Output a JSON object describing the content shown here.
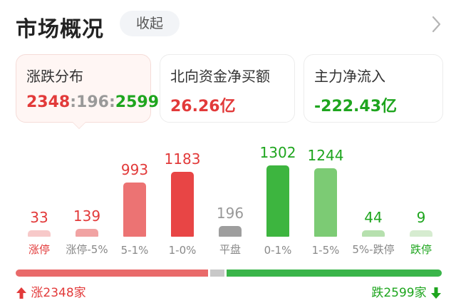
{
  "header": {
    "title": "市场概况",
    "collapse_label": "收起",
    "chevron_icon": "chevron-right-icon"
  },
  "cards": [
    {
      "label": "涨跌分布",
      "up": "2348",
      "sep1": ":",
      "flat": "196",
      "sep2": ":",
      "down": "2599"
    },
    {
      "label": "北向资金净买额",
      "value": "26.26亿"
    },
    {
      "label": "主力净流入",
      "value": "-222.43亿"
    }
  ],
  "distribution": [
    {
      "label": "涨停",
      "value": 33,
      "display": "33"
    },
    {
      "label": "涨停-5%",
      "value": 139,
      "display": "139"
    },
    {
      "label": "5-1%",
      "value": 993,
      "display": "993"
    },
    {
      "label": "1-0%",
      "value": 1183,
      "display": "1183"
    },
    {
      "label": "平盘",
      "value": 196,
      "display": "196"
    },
    {
      "label": "0-1%",
      "value": 1302,
      "display": "1302"
    },
    {
      "label": "1-5%",
      "value": 1244,
      "display": "1244"
    },
    {
      "label": "5%-跌停",
      "value": 44,
      "display": "44"
    },
    {
      "label": "跌停",
      "value": 9,
      "display": "9"
    }
  ],
  "footer": {
    "up_total": "涨2348家",
    "down_total": "跌2599家"
  },
  "colors": {
    "red": "#e23a3a",
    "green": "#1ea51e",
    "gray": "#999999",
    "bars": [
      "#f7c9c9",
      "#f1a3a3",
      "#ec7373",
      "#e84545",
      "#9e9e9e",
      "#3db53f",
      "#7ccb74",
      "#b6e0ae",
      "#d6ecd0"
    ],
    "labels": [
      "#e23a3a",
      "#888888",
      "#888888",
      "#888888",
      "#888888",
      "#888888",
      "#888888",
      "#888888",
      "#1ea51e"
    ],
    "values": [
      "#e23a3a",
      "#e23a3a",
      "#e23a3a",
      "#e23a3a",
      "#999999",
      "#1ea51e",
      "#1ea51e",
      "#1ea51e",
      "#1ea51e"
    ]
  }
}
